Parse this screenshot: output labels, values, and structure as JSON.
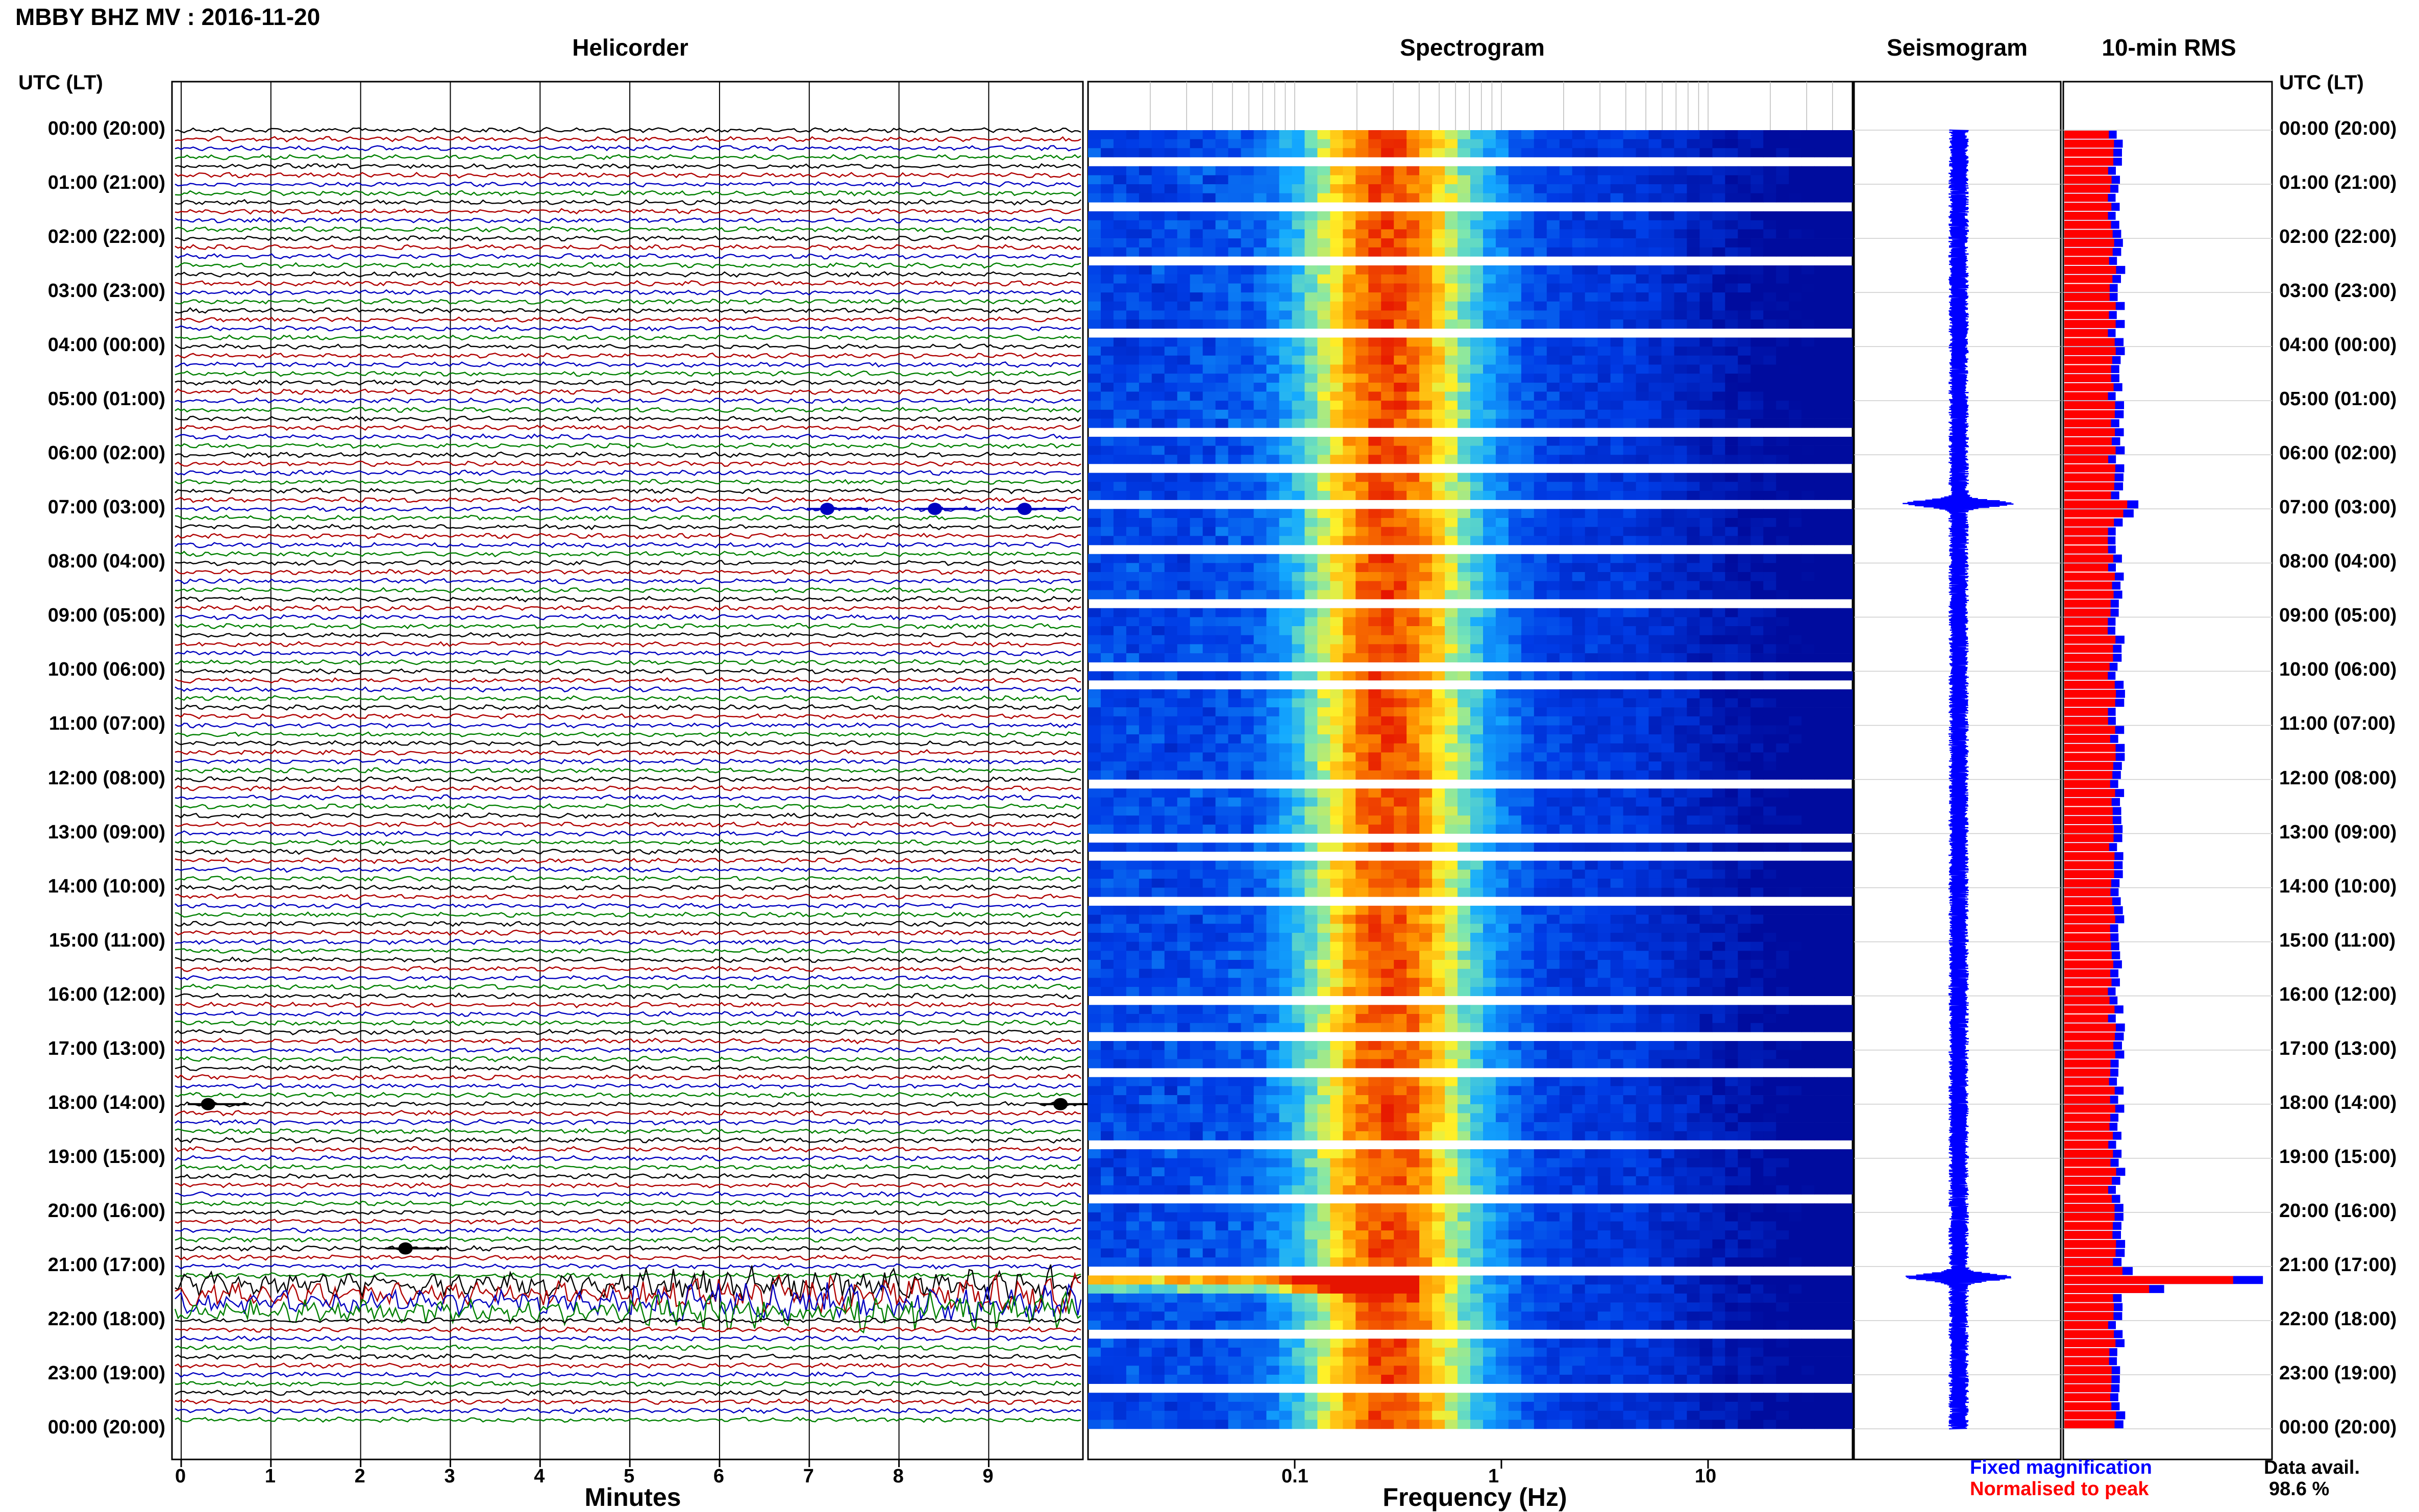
{
  "header": {
    "title": "MBBY BHZ MV : 2016-11-20",
    "utc_label": "UTC (LT)",
    "utc_label_right": "UTC (LT)"
  },
  "sections": {
    "helicorder": "Helicorder",
    "spectrogram": "Spectrogram",
    "seismogram": "Seismogram",
    "rms": "10-min RMS"
  },
  "axes": {
    "helicorder_xlabel": "Minutes",
    "spectrogram_xlabel": "Frequency (Hz)"
  },
  "legend": {
    "fixed": "Fixed magnification",
    "normalised": "Normalised to peak",
    "data_avail_label": "Data avail.",
    "data_avail_value": "98.6 %"
  },
  "colors": {
    "trace_cycle": [
      "#000000",
      "#b00000",
      "#0000c0",
      "#008000"
    ],
    "seismogram": "#0000ff",
    "rms_fixed": "#0000ff",
    "rms_normalised": "#ff0000",
    "spectrogram_low": "#00008b",
    "spectrogram_high": "#ff2000"
  },
  "chart_data": [
    {
      "type": "line",
      "title": "Helicorder",
      "xlabel": "Minutes",
      "xlim": [
        0,
        10
      ],
      "x_ticks": [
        "0",
        "1",
        "2",
        "3",
        "4",
        "5",
        "6",
        "7",
        "8",
        "9"
      ],
      "y_tick_labels": [
        "00:00 (20:00)",
        "01:00 (21:00)",
        "02:00 (22:00)",
        "03:00 (23:00)",
        "04:00 (00:00)",
        "05:00 (01:00)",
        "06:00 (02:00)",
        "07:00 (03:00)",
        "08:00 (04:00)",
        "09:00 (05:00)",
        "10:00 (06:00)",
        "11:00 (07:00)",
        "12:00 (08:00)",
        "13:00 (09:00)",
        "14:00 (10:00)",
        "15:00 (11:00)",
        "16:00 (12:00)",
        "17:00 (13:00)",
        "18:00 (14:00)",
        "19:00 (15:00)",
        "20:00 (16:00)",
        "21:00 (17:00)",
        "22:00 (18:00)",
        "23:00 (19:00)",
        "00:00 (20:00)"
      ],
      "rows": 144,
      "row_minutes": 10,
      "events": [
        {
          "row": 42,
          "minute": 7.2
        },
        {
          "row": 42,
          "minute": 8.4
        },
        {
          "row": 42,
          "minute": 9.4
        },
        {
          "row": 108,
          "minute": 0.3
        },
        {
          "row": 108,
          "minute": 9.8
        },
        {
          "row": 124,
          "minute": 2.5
        }
      ],
      "high_activity_rows": [
        128,
        129,
        130,
        131
      ]
    },
    {
      "type": "heatmap",
      "title": "Spectrogram",
      "xlabel": "Frequency (Hz)",
      "x_scale": "log",
      "xlim": [
        0.01,
        50
      ],
      "x_ticks": [
        "0.1",
        "1",
        "10"
      ],
      "peak_band_hz": [
        0.2,
        0.35
      ],
      "high_energy_hour_utc": 21.2
    },
    {
      "type": "line",
      "title": "Seismogram",
      "bursts_utc_hours": [
        6.9,
        21.2
      ]
    },
    {
      "type": "bar",
      "title": "10-min RMS",
      "series": [
        {
          "name": "Fixed magnification",
          "color": "#0000ff"
        },
        {
          "name": "Normalised to peak",
          "color": "#ff0000"
        }
      ],
      "peak_utc_hours": [
        6.9,
        21.2
      ]
    }
  ]
}
